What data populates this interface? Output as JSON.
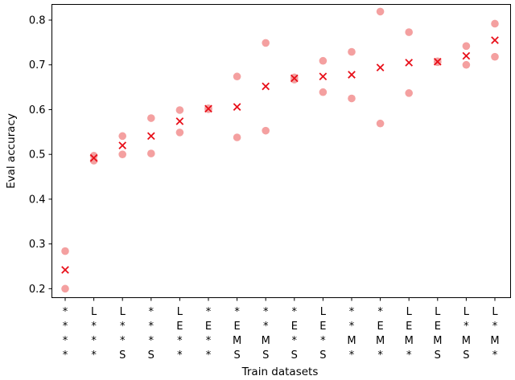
{
  "chart_data": {
    "type": "scatter",
    "xlabel": "Train datasets",
    "ylabel": "Eval accuracy",
    "ylim": [
      0.18,
      0.835
    ],
    "yticks": [
      "0.2",
      "0.3",
      "0.4",
      "0.5",
      "0.6",
      "0.7",
      "0.8"
    ],
    "grid": false,
    "categories": [
      [
        "*",
        "*",
        "*",
        "*"
      ],
      [
        "L",
        "*",
        "*",
        "*"
      ],
      [
        "L",
        "*",
        "*",
        "S"
      ],
      [
        "*",
        "*",
        "*",
        "S"
      ],
      [
        "L",
        "E",
        "*",
        "*"
      ],
      [
        "*",
        "E",
        "*",
        "*"
      ],
      [
        "*",
        "E",
        "M",
        "S"
      ],
      [
        "*",
        "*",
        "M",
        "S"
      ],
      [
        "*",
        "E",
        "*",
        "S"
      ],
      [
        "L",
        "E",
        "*",
        "S"
      ],
      [
        "*",
        "*",
        "M",
        "*"
      ],
      [
        "*",
        "E",
        "M",
        "*"
      ],
      [
        "L",
        "E",
        "M",
        "*"
      ],
      [
        "L",
        "E",
        "M",
        "S"
      ],
      [
        "L",
        "*",
        "M",
        "S"
      ],
      [
        "L",
        "*",
        "M",
        "*"
      ]
    ],
    "series": [
      {
        "marker": "circle",
        "color": "#f4a0a0",
        "points": [
          [
            0.284,
            0.2
          ],
          [
            0.497,
            0.486
          ],
          [
            0.541,
            0.5
          ],
          [
            0.581,
            0.502
          ],
          [
            0.599,
            0.549
          ],
          [
            0.603,
            0.601
          ],
          [
            0.674,
            0.538
          ],
          [
            0.749,
            0.553
          ],
          [
            0.672,
            0.667
          ],
          [
            0.709,
            0.639
          ],
          [
            0.729,
            0.625
          ],
          [
            0.819,
            0.569
          ],
          [
            0.773,
            0.637
          ],
          [
            0.708,
            0.706
          ],
          [
            0.742,
            0.7
          ],
          [
            0.792,
            0.718
          ]
        ]
      },
      {
        "marker": "x",
        "color": "#e8101a",
        "values": [
          0.242,
          0.492,
          0.52,
          0.541,
          0.574,
          0.602,
          0.606,
          0.652,
          0.67,
          0.674,
          0.678,
          0.694,
          0.705,
          0.707,
          0.72,
          0.755
        ]
      }
    ]
  }
}
